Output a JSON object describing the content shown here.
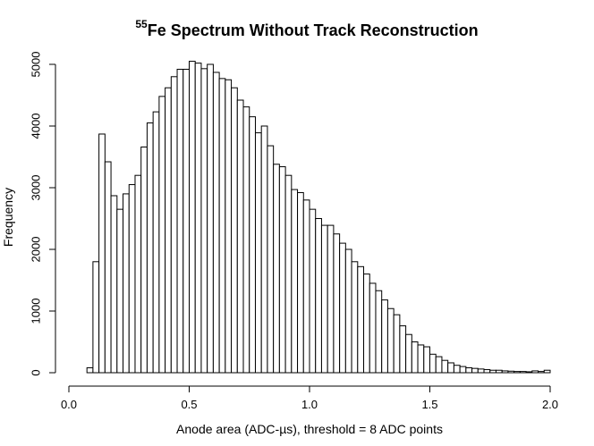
{
  "chart_data": {
    "type": "histogram",
    "title_superscript": "55",
    "title_main": "Fe Spectrum Without Track Reconstruction",
    "xlabel": "Anode area (ADC-µs), threshold = 8 ADC points",
    "ylabel": "Frequency",
    "xlim": [
      0.0,
      2.07
    ],
    "ylim": [
      0,
      5000
    ],
    "x_ticks": [
      0.0,
      0.5,
      1.0,
      1.5,
      2.0
    ],
    "x_tick_labels": [
      "0.0",
      "0.5",
      "1.0",
      "1.5",
      "2.0"
    ],
    "y_ticks": [
      0,
      1000,
      2000,
      3000,
      4000,
      5000
    ],
    "y_tick_labels": [
      "0",
      "1000",
      "2000",
      "3000",
      "4000",
      "5000"
    ],
    "bin_width": 0.025,
    "bin_start": 0.0,
    "values": [
      0,
      0,
      0,
      80,
      1800,
      3870,
      3420,
      2870,
      2650,
      2900,
      3050,
      3200,
      3660,
      4050,
      4230,
      4480,
      4620,
      4800,
      4920,
      4920,
      5050,
      5020,
      4930,
      5000,
      4870,
      4770,
      4750,
      4620,
      4420,
      4310,
      4150,
      3890,
      4000,
      3680,
      3380,
      3340,
      3200,
      2970,
      2920,
      2800,
      2650,
      2500,
      2390,
      2390,
      2250,
      2100,
      2000,
      1800,
      1720,
      1600,
      1450,
      1330,
      1180,
      1040,
      940,
      760,
      620,
      500,
      450,
      420,
      300,
      260,
      200,
      160,
      120,
      100,
      80,
      70,
      60,
      50,
      40,
      40,
      30,
      25,
      20,
      20,
      15,
      30,
      20,
      40
    ],
    "bar_fill": "#ffffff",
    "bar_stroke": "#000000"
  }
}
